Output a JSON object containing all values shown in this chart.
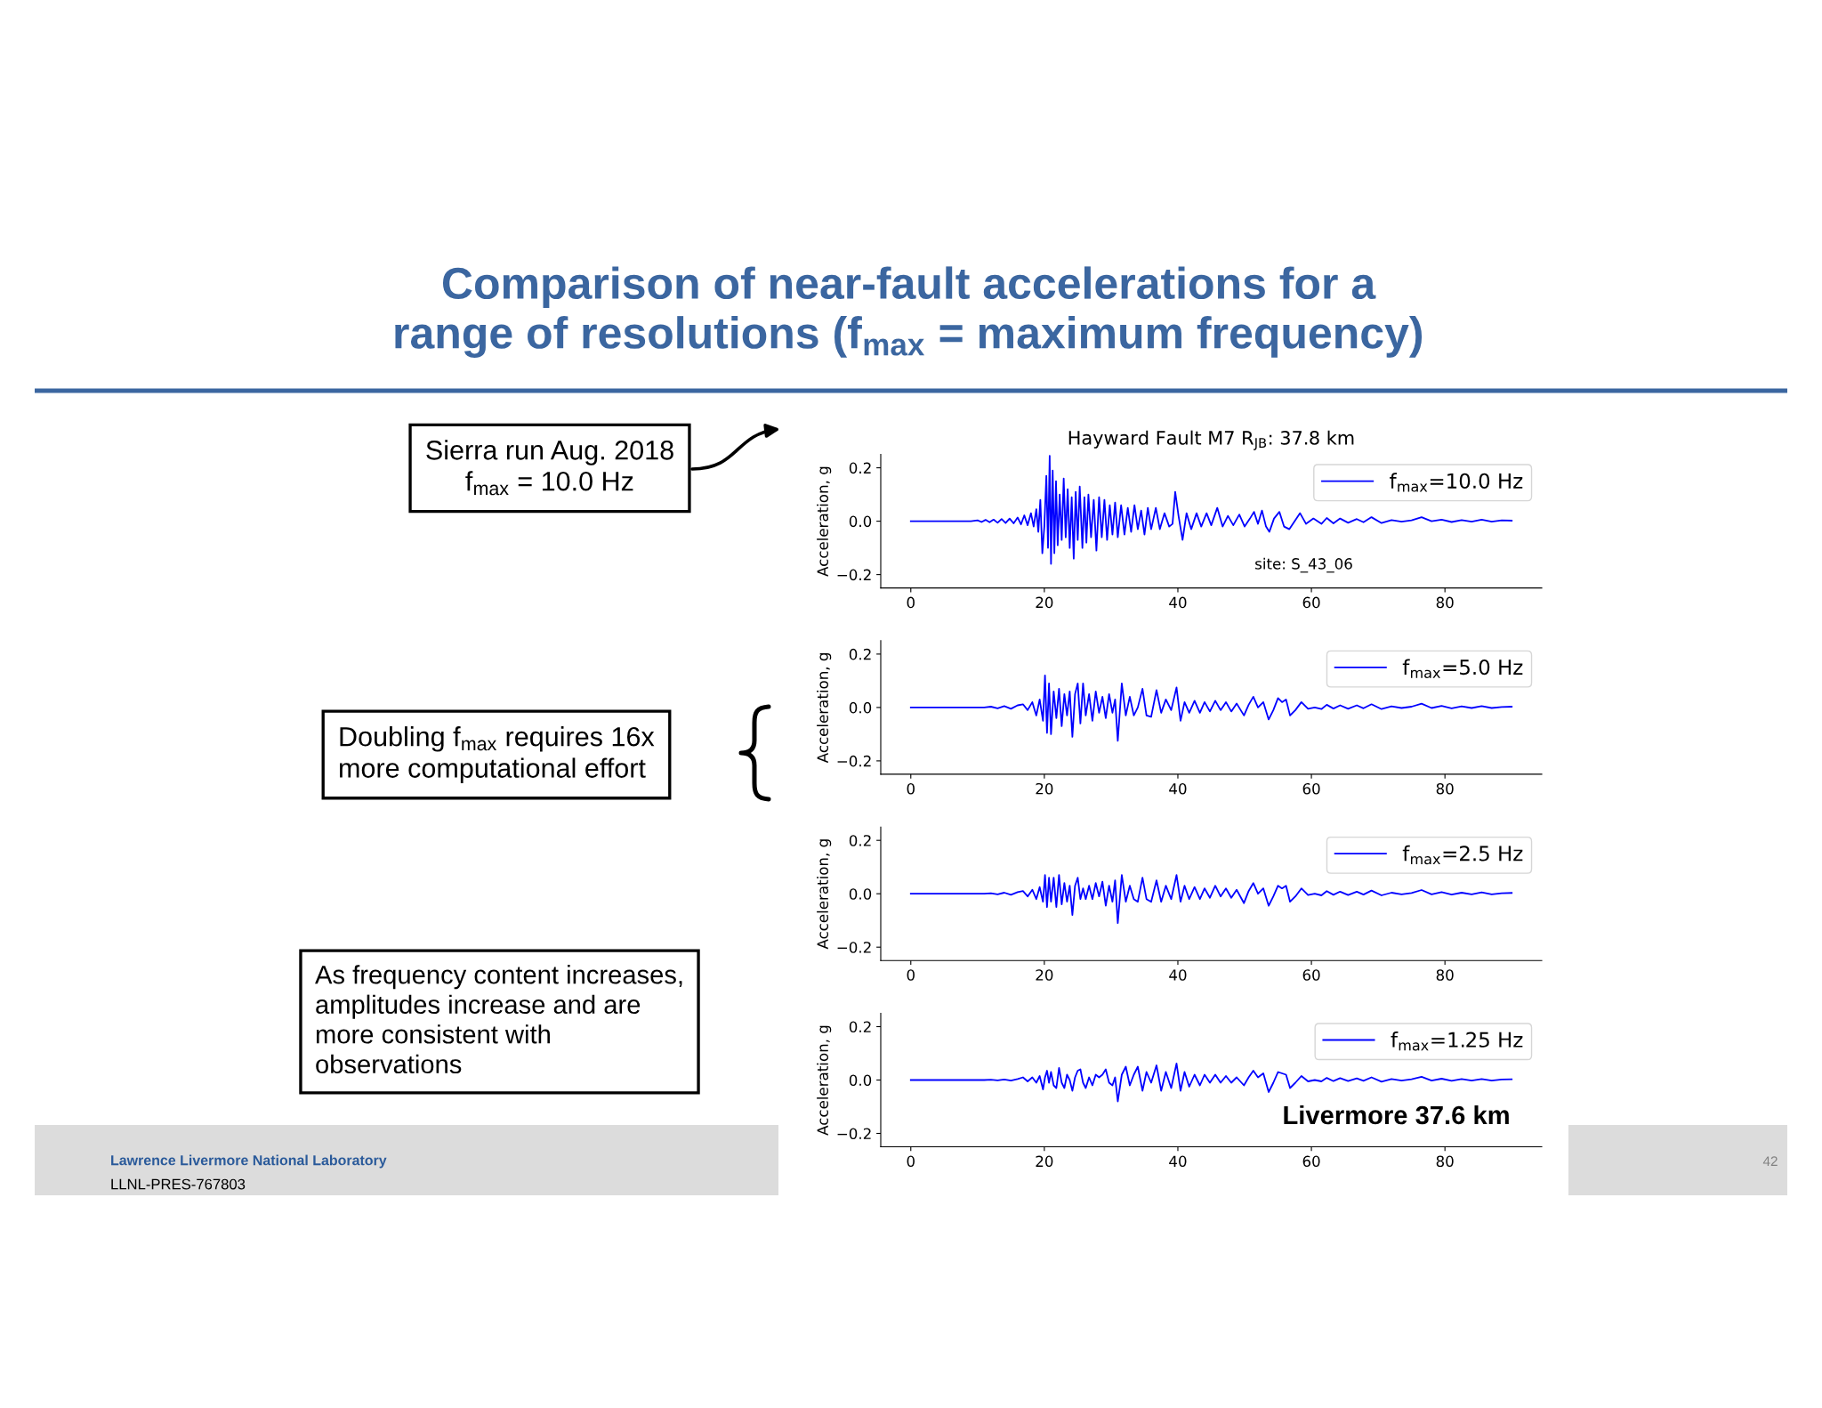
{
  "chart_data": [
    {
      "type": "other",
      "title": "Comparison of near-fault accelerations for a\nrange of resolutions (f$_{max}$ = maximum frequency)",
      "annotations": [
        "Sierra run Aug. 2018\nf$_{max}$ = 10.0 Hz",
        "Doubling f$_{max}$ requires 16x\nmore computational effort",
        "As frequency content increases,\namplitudes increase and are\nmore consistent with\nobservations",
        "Lawrence Livermore National Laboratory",
        "LLNL-PRES-767803",
        "42"
      ]
    },
    {
      "type": "line",
      "title": "Hayward Fault M7 R$_{JB}$: 37.8 km",
      "ylabel": "Acceleration, g",
      "x": [
        0,
        9,
        10,
        10.6,
        11.2,
        11.8,
        12.4,
        13,
        13.6,
        14.2,
        14.8,
        15.4,
        16,
        16.5,
        17,
        17.5,
        18,
        18.4,
        18.8,
        19.1,
        19.4,
        19.7,
        20.0,
        20.3,
        20.55,
        20.8,
        21.0,
        21.25,
        21.5,
        21.75,
        22.0,
        22.3,
        22.6,
        22.9,
        23.2,
        23.5,
        23.8,
        24.1,
        24.4,
        24.7,
        25.0,
        25.3,
        25.7,
        26.0,
        26.3,
        26.6,
        27.0,
        27.4,
        27.8,
        28.2,
        28.6,
        29.0,
        29.4,
        29.8,
        30.2,
        30.6,
        31.0,
        31.5,
        32.0,
        32.5,
        33.0,
        33.5,
        34.0,
        34.5,
        35.0,
        35.5,
        36.0,
        36.7,
        37.3,
        38.0,
        38.7,
        39.2,
        39.6,
        40.1,
        40.7,
        41.3,
        42.0,
        42.8,
        43.5,
        44.3,
        45.0,
        45.9,
        46.7,
        47.5,
        48.3,
        49.2,
        50.0,
        50.8,
        51.4,
        52.0,
        52.6,
        53.2,
        53.7,
        54.4,
        55.2,
        55.9,
        56.7,
        57.5,
        58.3,
        59.2,
        60.3,
        61.5,
        62.3,
        63.3,
        64.3,
        65.5,
        66.8,
        67.8,
        69.0,
        70.5,
        72.0,
        73.5,
        75.0,
        76.5,
        78.0,
        79.5,
        81.0,
        82.5,
        84.0,
        85.5,
        87.0,
        88.5,
        90.0
      ],
      "series": [
        {
          "name": "f$_{max}$=10.0 Hz",
          "color": "#0000ff",
          "values": [
            0,
            0,
            0.003,
            -0.003,
            0.005,
            -0.004,
            0.006,
            -0.006,
            0.008,
            -0.007,
            0.01,
            -0.008,
            0.014,
            -0.012,
            0.022,
            -0.015,
            0.03,
            -0.02,
            0.045,
            -0.04,
            0.08,
            -0.12,
            -0.02,
            0.17,
            -0.1,
            0.245,
            -0.16,
            0.19,
            -0.12,
            0.15,
            -0.09,
            0.1,
            -0.07,
            0.16,
            -0.06,
            0.12,
            -0.1,
            0.09,
            -0.14,
            0.11,
            -0.07,
            0.13,
            -0.1,
            0.09,
            -0.08,
            0.1,
            -0.06,
            0.08,
            -0.11,
            0.09,
            -0.06,
            0.08,
            -0.07,
            0.06,
            -0.05,
            0.07,
            -0.06,
            0.06,
            -0.05,
            0.05,
            -0.04,
            0.06,
            -0.03,
            0.04,
            -0.05,
            0.05,
            -0.03,
            0.05,
            -0.03,
            0.03,
            -0.02,
            -0.01,
            0.11,
            0.02,
            -0.07,
            0.03,
            -0.03,
            0.03,
            -0.02,
            0.03,
            -0.015,
            0.05,
            -0.02,
            0.02,
            -0.015,
            0.025,
            -0.02,
            0.01,
            0.035,
            -0.01,
            0.04,
            -0.02,
            -0.04,
            0.01,
            0.035,
            -0.02,
            -0.03,
            0.0,
            0.03,
            -0.01,
            0.01,
            -0.01,
            0.012,
            -0.008,
            0.01,
            -0.006,
            0.008,
            -0.004,
            0.015,
            -0.007,
            0.004,
            -0.002,
            0.003,
            0.015,
            0.0,
            0.006,
            -0.003,
            0.004,
            -0.002,
            0.006,
            -0.002,
            0.003,
            0.002
          ]
        }
      ],
      "xlim": [
        -4.5,
        94.5
      ],
      "ylim": [
        -0.25,
        0.25
      ],
      "xticks": [
        0,
        20,
        40,
        60,
        80
      ],
      "yticks": [
        {
          "value": -0.2,
          "label": "−0.2"
        },
        {
          "value": 0,
          "label": "0.0"
        },
        {
          "value": 0.2,
          "label": "0.2"
        }
      ],
      "legend": "top right",
      "annotations": [
        "site: S_43_06"
      ]
    },
    {
      "type": "line",
      "ylabel": "Acceleration, g",
      "x": [
        0,
        11,
        12,
        13,
        14,
        15,
        16,
        16.8,
        17.5,
        18.2,
        18.8,
        19.3,
        19.8,
        20.1,
        20.4,
        20.7,
        21.0,
        21.4,
        21.8,
        22.2,
        22.6,
        23.0,
        23.4,
        23.8,
        24.2,
        24.6,
        25.0,
        25.4,
        25.8,
        26.2,
        26.7,
        27.2,
        27.7,
        28.2,
        28.7,
        29.2,
        29.7,
        30.2,
        30.6,
        31.0,
        31.6,
        32.2,
        32.8,
        33.4,
        34.0,
        34.7,
        35.3,
        36.0,
        36.8,
        37.5,
        38.2,
        39.0,
        39.8,
        40.4,
        41.0,
        41.7,
        42.5,
        43.3,
        44.0,
        44.8,
        45.6,
        46.4,
        47.2,
        48.0,
        48.8,
        49.9,
        50.6,
        51.3,
        52.0,
        52.8,
        53.6,
        54.3,
        55.0,
        55.6,
        56.2,
        56.8,
        57.6,
        58.5,
        59.5,
        60.5,
        61.5,
        62.3,
        63.3,
        64.3,
        65.5,
        66.8,
        67.8,
        69.0,
        70.5,
        72.0,
        73.5,
        75.0,
        76.5,
        78.0,
        79.5,
        81.0,
        82.5,
        84.0,
        85.5,
        87.0,
        88.5,
        90.0
      ],
      "series": [
        {
          "name": "f$_{max}$=5.0 Hz",
          "color": "#0000ff",
          "values": [
            0,
            0,
            0.003,
            -0.003,
            0.005,
            -0.005,
            0.008,
            0.012,
            -0.01,
            0.02,
            -0.03,
            0.03,
            -0.05,
            0.12,
            -0.095,
            0.09,
            -0.1,
            0.06,
            -0.04,
            0.07,
            -0.07,
            0.05,
            -0.03,
            0.06,
            -0.11,
            0.05,
            0.09,
            -0.06,
            0.09,
            -0.03,
            0.05,
            -0.05,
            0.06,
            -0.02,
            0.04,
            -0.04,
            0.05,
            -0.02,
            0.03,
            -0.125,
            0.09,
            -0.03,
            0.04,
            -0.03,
            0.0,
            0.07,
            -0.03,
            -0.035,
            0.065,
            -0.02,
            0.03,
            -0.01,
            0.075,
            -0.05,
            0.02,
            -0.02,
            0.025,
            -0.02,
            0.02,
            -0.015,
            0.025,
            -0.01,
            0.02,
            -0.015,
            0.015,
            -0.03,
            0.01,
            0.04,
            0.0,
            0.02,
            -0.045,
            -0.01,
            0.035,
            0.02,
            0.03,
            -0.03,
            -0.01,
            0.02,
            -0.005,
            0.0,
            -0.006,
            0.01,
            -0.004,
            0.008,
            -0.005,
            0.008,
            -0.003,
            0.012,
            -0.006,
            0.004,
            -0.002,
            0.003,
            0.014,
            -0.002,
            0.006,
            -0.003,
            0.004,
            -0.002,
            0.005,
            -0.002,
            0.002,
            0.003
          ]
        }
      ],
      "xlim": [
        -4.5,
        94.5
      ],
      "ylim": [
        -0.25,
        0.25
      ],
      "xticks": [
        0,
        20,
        40,
        60,
        80
      ],
      "yticks": [
        {
          "value": -0.2,
          "label": "−0.2"
        },
        {
          "value": 0,
          "label": "0.0"
        },
        {
          "value": 0.2,
          "label": "0.2"
        }
      ],
      "legend": "top right"
    },
    {
      "type": "line",
      "ylabel": "Acceleration, g",
      "x": [
        0,
        11,
        12,
        13,
        14,
        15,
        16,
        16.8,
        17.5,
        18.2,
        18.8,
        19.3,
        19.8,
        20.1,
        20.4,
        20.7,
        21.0,
        21.4,
        21.8,
        22.2,
        22.6,
        23.0,
        23.4,
        23.8,
        24.2,
        24.6,
        25.0,
        25.4,
        25.8,
        26.2,
        26.7,
        27.2,
        27.7,
        28.2,
        28.7,
        29.2,
        29.7,
        30.2,
        30.6,
        31.0,
        31.6,
        32.2,
        32.8,
        33.4,
        34.0,
        34.7,
        35.3,
        36.0,
        36.8,
        37.5,
        38.2,
        39.0,
        39.8,
        40.4,
        41.0,
        41.7,
        42.5,
        43.3,
        44.0,
        44.8,
        45.6,
        46.4,
        47.2,
        48.0,
        48.8,
        49.9,
        50.6,
        51.3,
        52.0,
        52.8,
        53.6,
        54.3,
        55.0,
        55.6,
        56.2,
        56.8,
        57.6,
        58.5,
        59.5,
        60.5,
        61.5,
        62.3,
        63.3,
        64.3,
        65.5,
        66.8,
        67.8,
        69.0,
        70.5,
        72.0,
        73.5,
        75.0,
        76.5,
        78.0,
        79.5,
        81.0,
        82.5,
        84.0,
        85.5,
        87.0,
        88.5,
        90.0
      ],
      "series": [
        {
          "name": "f$_{max}$=2.5 Hz",
          "color": "#0000ff",
          "values": [
            0,
            0,
            0.002,
            -0.002,
            0.004,
            -0.004,
            0.006,
            0.01,
            -0.01,
            0.015,
            -0.02,
            0.025,
            -0.03,
            0.07,
            -0.05,
            0.06,
            -0.03,
            0.06,
            -0.05,
            0.07,
            -0.04,
            0.04,
            -0.03,
            0.03,
            -0.08,
            0.03,
            0.06,
            -0.02,
            0.02,
            -0.02,
            0.03,
            -0.02,
            0.04,
            -0.01,
            0.045,
            -0.045,
            0.03,
            -0.03,
            0.05,
            -0.11,
            0.07,
            -0.03,
            0.03,
            -0.02,
            -0.03,
            0.06,
            -0.02,
            -0.03,
            0.05,
            -0.03,
            0.03,
            -0.02,
            0.07,
            -0.03,
            0.03,
            -0.02,
            0.025,
            -0.02,
            0.02,
            -0.015,
            0.03,
            -0.01,
            0.02,
            -0.015,
            0.015,
            -0.035,
            0.01,
            0.04,
            0.0,
            0.02,
            -0.045,
            -0.01,
            0.03,
            0.02,
            0.03,
            -0.03,
            -0.01,
            0.02,
            -0.005,
            0.0,
            -0.006,
            0.01,
            -0.004,
            0.008,
            -0.005,
            0.008,
            -0.003,
            0.012,
            -0.006,
            0.004,
            -0.002,
            0.003,
            0.014,
            -0.002,
            0.006,
            -0.003,
            0.004,
            -0.002,
            0.005,
            -0.002,
            0.002,
            0.003
          ]
        }
      ],
      "xlim": [
        -4.5,
        94.5
      ],
      "ylim": [
        -0.25,
        0.25
      ],
      "xticks": [
        0,
        20,
        40,
        60,
        80
      ],
      "yticks": [
        {
          "value": -0.2,
          "label": "−0.2"
        },
        {
          "value": 0,
          "label": "0.0"
        },
        {
          "value": 0.2,
          "label": "0.2"
        }
      ],
      "legend": "top right"
    },
    {
      "type": "line",
      "ylabel": "Acceleration, g",
      "x": [
        0,
        11,
        12,
        13,
        14,
        15,
        16,
        16.8,
        17.5,
        18.2,
        18.8,
        19.3,
        19.8,
        20.1,
        20.4,
        20.7,
        21.0,
        21.4,
        21.8,
        22.2,
        22.6,
        23.0,
        23.4,
        23.8,
        24.2,
        24.6,
        25.0,
        25.4,
        25.8,
        26.2,
        26.7,
        27.2,
        27.7,
        28.2,
        28.7,
        29.2,
        29.7,
        30.2,
        30.6,
        31.0,
        31.6,
        32.2,
        32.8,
        33.4,
        34.0,
        34.7,
        35.3,
        36.0,
        36.8,
        37.5,
        38.2,
        39.0,
        39.8,
        40.4,
        41.0,
        41.7,
        42.5,
        43.3,
        44.0,
        44.8,
        45.6,
        46.4,
        47.2,
        48.0,
        48.8,
        49.9,
        50.6,
        51.3,
        52.0,
        52.8,
        53.6,
        54.3,
        55.0,
        55.6,
        56.2,
        56.8,
        57.6,
        58.5,
        59.5,
        60.5,
        61.5,
        62.3,
        63.3,
        64.3,
        65.5,
        66.8,
        67.8,
        69.0,
        70.5,
        72.0,
        73.5,
        75.0,
        76.5,
        78.0,
        79.5,
        81.0,
        82.5,
        84.0,
        85.5,
        87.0,
        88.5,
        90.0
      ],
      "series": [
        {
          "name": "f$_{max}$=1.25 Hz",
          "color": "#0000ff",
          "values": [
            0,
            0,
            0.001,
            -0.001,
            0.002,
            -0.002,
            0.004,
            0.01,
            -0.005,
            0.01,
            -0.01,
            0.015,
            -0.035,
            0.01,
            0.035,
            -0.01,
            0.03,
            -0.02,
            -0.03,
            0.045,
            -0.01,
            -0.03,
            0.02,
            0.0,
            -0.04,
            0.01,
            0.035,
            0.04,
            -0.01,
            -0.03,
            0.01,
            -0.02,
            0.02,
            0.01,
            0.02,
            0.04,
            -0.01,
            -0.02,
            0.01,
            -0.08,
            0.02,
            0.05,
            -0.02,
            0.02,
            0.05,
            -0.04,
            0.03,
            -0.01,
            0.055,
            -0.04,
            0.03,
            -0.03,
            0.062,
            -0.04,
            0.03,
            -0.025,
            0.02,
            -0.02,
            0.02,
            -0.01,
            0.02,
            -0.01,
            0.015,
            -0.01,
            0.01,
            -0.02,
            0.01,
            0.035,
            0.01,
            0.025,
            -0.045,
            -0.01,
            0.03,
            0.025,
            0.02,
            -0.03,
            -0.01,
            0.015,
            -0.005,
            0.0,
            -0.005,
            0.008,
            -0.004,
            0.007,
            -0.004,
            0.006,
            -0.003,
            0.01,
            -0.006,
            0.004,
            -0.002,
            0.003,
            0.012,
            -0.002,
            0.005,
            -0.003,
            0.004,
            -0.002,
            0.004,
            -0.002,
            0.002,
            0.003
          ]
        }
      ],
      "xlim": [
        -4.5,
        94.5
      ],
      "ylim": [
        -0.25,
        0.25
      ],
      "xticks": [
        0,
        20,
        40,
        60,
        80
      ],
      "yticks": [
        {
          "value": -0.2,
          "label": "−0.2"
        },
        {
          "value": 0,
          "label": "0.0"
        },
        {
          "value": 0.2,
          "label": "0.2"
        }
      ],
      "legend": "top right",
      "annotations": [
        "Livermore 37.6 km"
      ]
    }
  ]
}
